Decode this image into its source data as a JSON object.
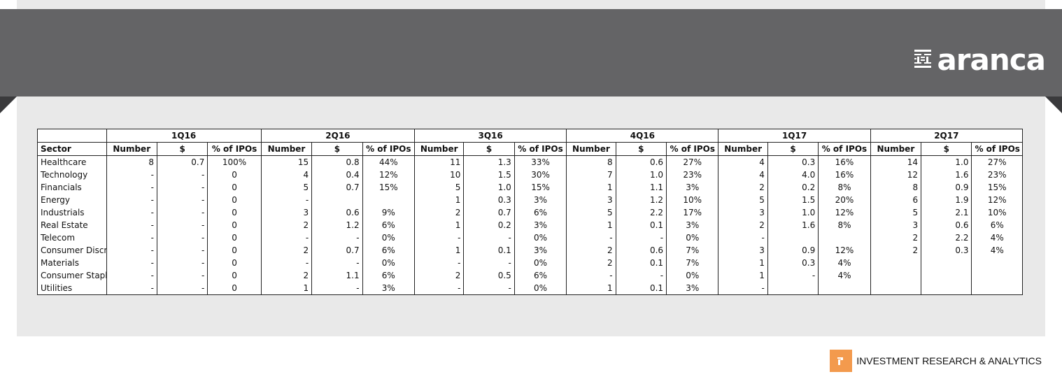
{
  "brand": {
    "logo_text": "aranca",
    "tagline": "INVESTMENT RESEARCH & ANALYTICS",
    "banner_color": "#646466",
    "accent_color": "#f39a4d"
  },
  "table": {
    "sector_header": "Sector",
    "quarters": [
      "1Q16",
      "2Q16",
      "3Q16",
      "4Q16",
      "1Q17",
      "2Q17"
    ],
    "column_labels": [
      "Number",
      "$",
      "% of IPOs"
    ],
    "rows": [
      {
        "sector": "Healthcare",
        "cells": [
          "8",
          "0.7",
          "100%",
          "15",
          "0.8",
          "44%",
          "11",
          "1.3",
          "33%",
          "8",
          "0.6",
          "27%",
          "4",
          "0.3",
          "16%",
          "14",
          "1.0",
          "27%"
        ]
      },
      {
        "sector": "Technology",
        "cells": [
          "-",
          "-",
          "0",
          "4",
          "0.4",
          "12%",
          "10",
          "1.5",
          "30%",
          "7",
          "1.0",
          "23%",
          "4",
          "4.0",
          "16%",
          "12",
          "1.6",
          "23%"
        ]
      },
      {
        "sector": "Financials",
        "cells": [
          "-",
          "-",
          "0",
          "5",
          "0.7",
          "15%",
          "5",
          "1.0",
          "15%",
          "1",
          "1.1",
          "3%",
          "2",
          "0.2",
          "8%",
          "8",
          "0.9",
          "15%"
        ]
      },
      {
        "sector": "Energy",
        "cells": [
          "-",
          "-",
          "0",
          "-",
          "",
          "",
          "1",
          "0.3",
          "3%",
          "3",
          "1.2",
          "10%",
          "5",
          "1.5",
          "20%",
          "6",
          "1.9",
          "12%"
        ]
      },
      {
        "sector": "Industrials",
        "cells": [
          "-",
          "-",
          "0",
          "3",
          "0.6",
          "9%",
          "2",
          "0.7",
          "6%",
          "5",
          "2.2",
          "17%",
          "3",
          "1.0",
          "12%",
          "5",
          "2.1",
          "10%"
        ]
      },
      {
        "sector": "Real Estate",
        "cells": [
          "-",
          "-",
          "0",
          "2",
          "1.2",
          "6%",
          "1",
          "0.2",
          "3%",
          "1",
          "0.1",
          "3%",
          "2",
          "1.6",
          "8%",
          "3",
          "0.6",
          "6%"
        ]
      },
      {
        "sector": "Telecom",
        "cells": [
          "-",
          "-",
          "0",
          "-",
          "-",
          "0%",
          "-",
          "-",
          "0%",
          "-",
          "-",
          "0%",
          "-",
          "",
          "",
          "2",
          "2.2",
          "4%"
        ]
      },
      {
        "sector": "Consumer Discr",
        "cells": [
          "-",
          "-",
          "0",
          "2",
          "0.7",
          "6%",
          "1",
          "0.1",
          "3%",
          "2",
          "0.6",
          "7%",
          "3",
          "0.9",
          "12%",
          "2",
          "0.3",
          "4%"
        ]
      },
      {
        "sector": "Materials",
        "cells": [
          "-",
          "-",
          "0",
          "-",
          "-",
          "0%",
          "-",
          "-",
          "0%",
          "2",
          "0.1",
          "7%",
          "1",
          "0.3",
          "4%",
          "",
          "",
          ""
        ]
      },
      {
        "sector": "Consumer Stapl",
        "cells": [
          "-",
          "-",
          "0",
          "2",
          "1.1",
          "6%",
          "2",
          "0.5",
          "6%",
          "-",
          "-",
          "0%",
          "1",
          "-",
          "4%",
          "",
          "",
          ""
        ]
      },
      {
        "sector": "Utilities",
        "cells": [
          "-",
          "-",
          "0",
          "1",
          "-",
          "3%",
          "-",
          "-",
          "0%",
          "1",
          "0.1",
          "3%",
          "-",
          "",
          "",
          "",
          "",
          ""
        ]
      }
    ]
  }
}
